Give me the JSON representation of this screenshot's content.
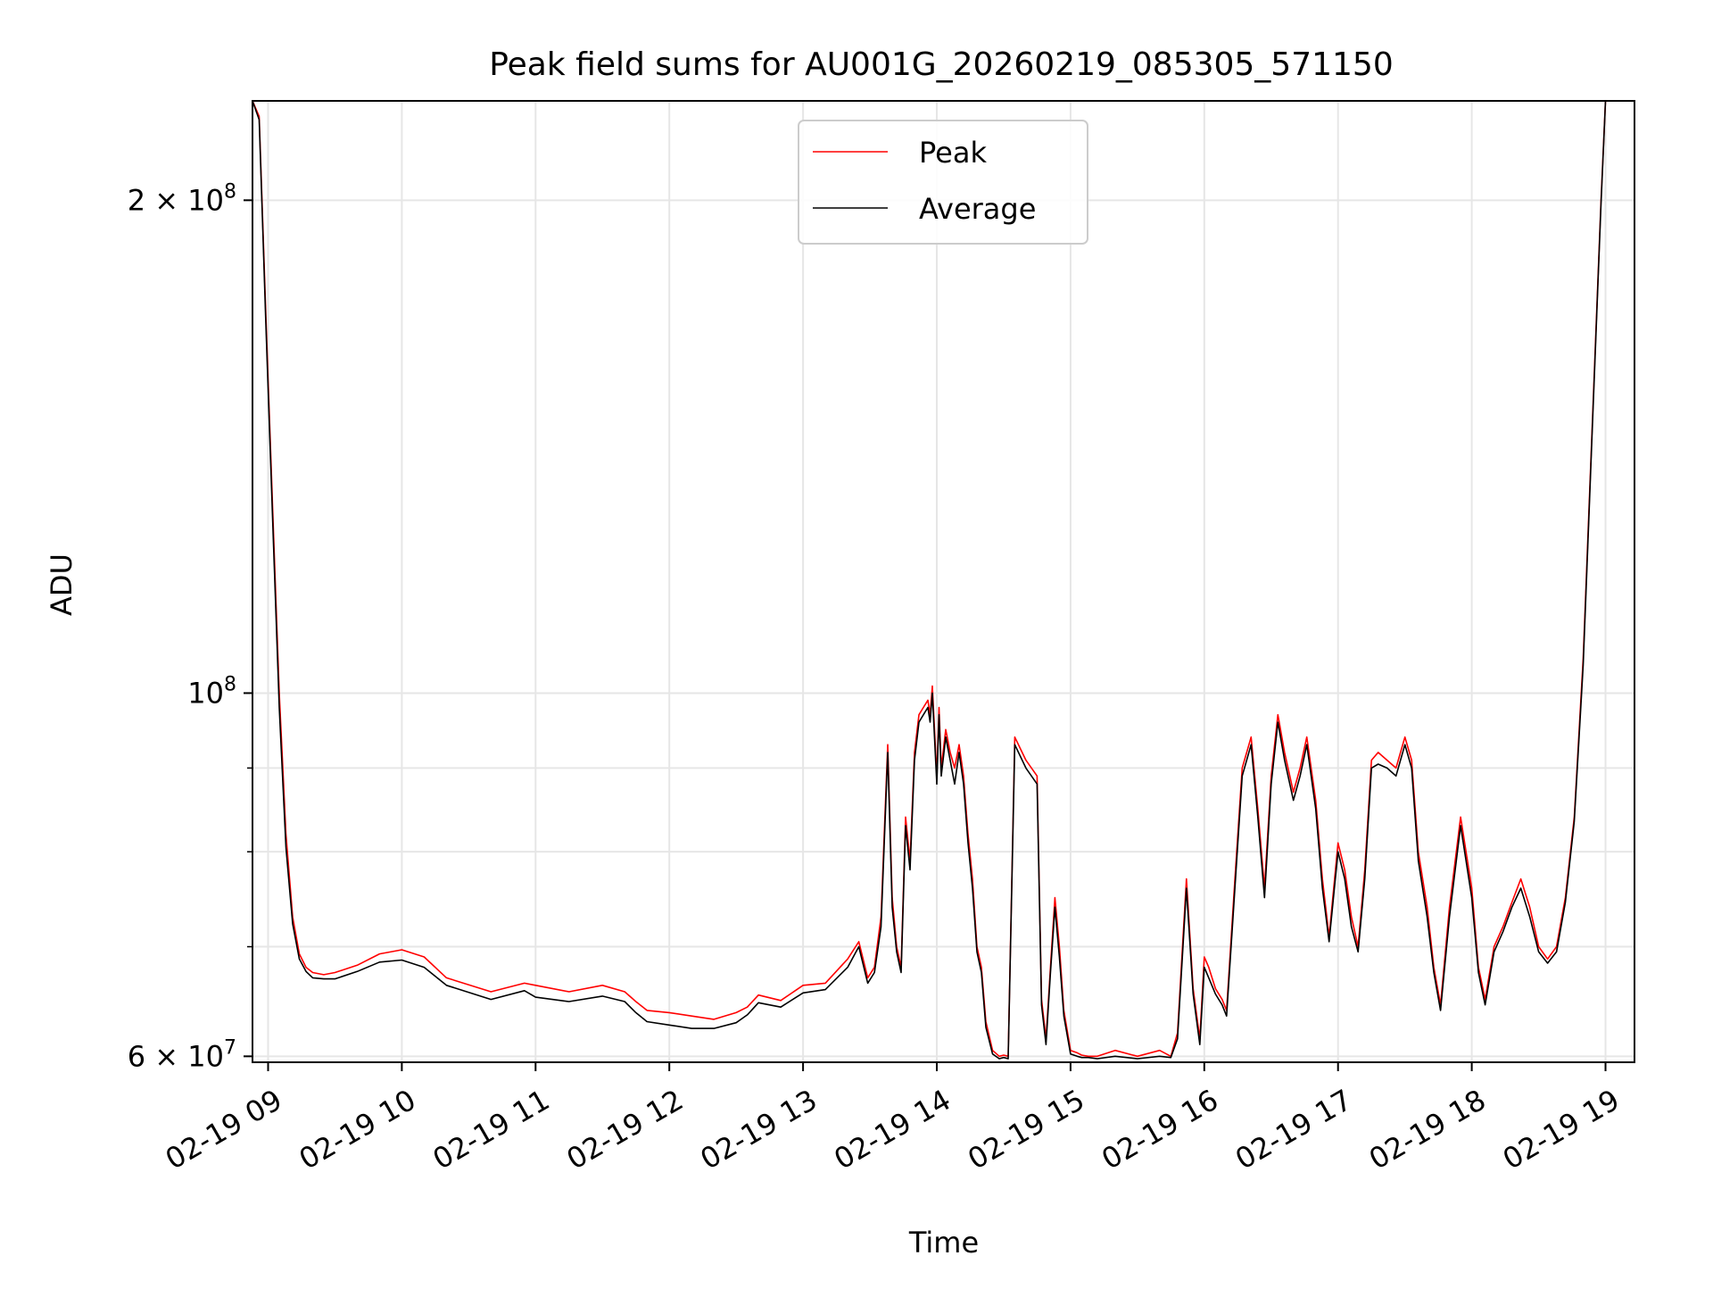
{
  "chart_data": {
    "type": "line",
    "title": "Peak field sums for AU001G_20260219_085305_571150",
    "xlabel": "Time",
    "ylabel": "ADU",
    "y_scale": "log",
    "grid": true,
    "legend_position": "top-center",
    "xlim": [
      "02-19 08:53",
      "02-19 19:13"
    ],
    "ylim": [
      59500000,
      230000000
    ],
    "x_ticks": [
      {
        "x": "02-19 09:00",
        "label": "02-19 09"
      },
      {
        "x": "02-19 10:00",
        "label": "02-19 10"
      },
      {
        "x": "02-19 11:00",
        "label": "02-19 11"
      },
      {
        "x": "02-19 12:00",
        "label": "02-19 12"
      },
      {
        "x": "02-19 13:00",
        "label": "02-19 13"
      },
      {
        "x": "02-19 14:00",
        "label": "02-19 14"
      },
      {
        "x": "02-19 15:00",
        "label": "02-19 15"
      },
      {
        "x": "02-19 16:00",
        "label": "02-19 16"
      },
      {
        "x": "02-19 17:00",
        "label": "02-19 17"
      },
      {
        "x": "02-19 18:00",
        "label": "02-19 18"
      },
      {
        "x": "02-19 19:00",
        "label": "02-19 19"
      }
    ],
    "y_major_ticks": [
      {
        "value": 60000000,
        "mantissa": "6",
        "base": "10",
        "exponent": "7"
      },
      {
        "value": 100000000,
        "mantissa": "",
        "base": "10",
        "exponent": "8"
      },
      {
        "value": 200000000,
        "mantissa": "2",
        "base": "10",
        "exponent": "8"
      }
    ],
    "y_minor_ticks": [
      70000000,
      80000000,
      90000000
    ],
    "series": [
      {
        "name": "Peak",
        "color": "#ff0000",
        "x": [
          "08:53",
          "08:56",
          "08:59",
          "09:02",
          "09:05",
          "09:08",
          "09:11",
          "09:14",
          "09:17",
          "09:20",
          "09:25",
          "09:30",
          "09:40",
          "09:50",
          "10:00",
          "10:10",
          "10:20",
          "10:40",
          "10:55",
          "11:00",
          "11:15",
          "11:30",
          "11:40",
          "11:45",
          "11:50",
          "12:00",
          "12:10",
          "12:20",
          "12:30",
          "12:35",
          "12:40",
          "12:50",
          "13:00",
          "13:10",
          "13:20",
          "13:25",
          "13:29",
          "13:32",
          "13:35",
          "13:38",
          "13:40",
          "13:42",
          "13:44",
          "13:46",
          "13:48",
          "13:50",
          "13:52",
          "13:54",
          "13:56",
          "13:57",
          "13:58",
          "14:00",
          "14:01",
          "14:02",
          "14:04",
          "14:06",
          "14:08",
          "14:10",
          "14:12",
          "14:14",
          "14:16",
          "14:18",
          "14:20",
          "14:22",
          "14:25",
          "14:28",
          "14:30",
          "14:32",
          "14:35",
          "14:40",
          "14:45",
          "14:47",
          "14:49",
          "14:51",
          "14:53",
          "14:55",
          "14:57",
          "15:00",
          "15:03",
          "15:05",
          "15:08",
          "15:12",
          "15:20",
          "15:30",
          "15:40",
          "15:45",
          "15:48",
          "15:52",
          "15:55",
          "15:58",
          "16:00",
          "16:02",
          "16:05",
          "16:08",
          "16:10",
          "16:14",
          "16:17",
          "16:21",
          "16:24",
          "16:27",
          "16:30",
          "16:33",
          "16:36",
          "16:40",
          "16:43",
          "16:46",
          "16:50",
          "16:53",
          "16:56",
          "17:00",
          "17:03",
          "17:06",
          "17:09",
          "17:12",
          "17:15",
          "17:18",
          "17:22",
          "17:26",
          "17:30",
          "17:33",
          "17:36",
          "17:40",
          "17:43",
          "17:46",
          "17:50",
          "17:55",
          "18:00",
          "18:03",
          "18:06",
          "18:10",
          "18:14",
          "18:18",
          "18:22",
          "18:26",
          "18:30",
          "18:34",
          "18:38",
          "18:42",
          "18:46",
          "18:50",
          "18:54",
          "18:58",
          "19:00"
        ],
        "y": [
          230000000,
          225000000,
          170000000,
          130000000,
          100000000,
          82000000,
          73000000,
          69300000,
          68000000,
          67500000,
          67300000,
          67500000,
          68200000,
          69300000,
          69700000,
          69000000,
          67000000,
          65700000,
          66500000,
          66300000,
          65700000,
          66300000,
          65700000,
          64800000,
          64000000,
          63800000,
          63500000,
          63200000,
          63800000,
          64300000,
          65400000,
          64900000,
          66300000,
          66500000,
          68800000,
          70500000,
          67000000,
          68000000,
          73000000,
          93000000,
          75000000,
          70000000,
          68000000,
          84000000,
          79000000,
          92000000,
          97000000,
          98000000,
          99000000,
          97000000,
          101000000,
          89000000,
          98000000,
          90000000,
          95000000,
          92000000,
          90000000,
          93000000,
          89000000,
          82000000,
          77000000,
          70000000,
          68000000,
          63000000,
          60500000,
          60000000,
          60100000,
          60000000,
          94000000,
          91000000,
          89000000,
          65000000,
          61500000,
          68000000,
          75000000,
          70000000,
          64000000,
          60500000,
          60300000,
          60100000,
          60000000,
          60000000,
          60500000,
          60000000,
          60500000,
          60000000,
          62000000,
          77000000,
          66000000,
          61500000,
          69000000,
          68000000,
          66000000,
          65000000,
          64000000,
          78000000,
          90000000,
          94000000,
          85000000,
          76000000,
          89000000,
          97000000,
          92000000,
          87000000,
          90000000,
          94000000,
          86000000,
          77000000,
          71000000,
          81000000,
          78000000,
          73000000,
          70000000,
          78000000,
          91000000,
          92000000,
          91000000,
          90000000,
          94000000,
          91000000,
          80000000,
          74000000,
          68000000,
          64500000,
          74000000,
          84000000,
          76000000,
          68000000,
          65000000,
          70000000,
          72000000,
          74500000,
          77000000,
          74000000,
          70000000,
          68800000,
          70000000,
          75000000,
          84000000,
          105000000,
          145000000,
          200000000,
          230000000
        ]
      },
      {
        "name": "Average",
        "color": "#000000",
        "x": [
          "08:53",
          "08:56",
          "08:59",
          "09:02",
          "09:05",
          "09:08",
          "09:11",
          "09:14",
          "09:17",
          "09:20",
          "09:25",
          "09:30",
          "09:40",
          "09:50",
          "10:00",
          "10:10",
          "10:20",
          "10:40",
          "10:55",
          "11:00",
          "11:15",
          "11:30",
          "11:40",
          "11:45",
          "11:50",
          "12:00",
          "12:10",
          "12:20",
          "12:30",
          "12:35",
          "12:40",
          "12:50",
          "13:00",
          "13:10",
          "13:20",
          "13:25",
          "13:29",
          "13:32",
          "13:35",
          "13:38",
          "13:40",
          "13:42",
          "13:44",
          "13:46",
          "13:48",
          "13:50",
          "13:52",
          "13:54",
          "13:56",
          "13:57",
          "13:58",
          "14:00",
          "14:01",
          "14:02",
          "14:04",
          "14:06",
          "14:08",
          "14:10",
          "14:12",
          "14:14",
          "14:16",
          "14:18",
          "14:20",
          "14:22",
          "14:25",
          "14:28",
          "14:30",
          "14:32",
          "14:35",
          "14:40",
          "14:45",
          "14:47",
          "14:49",
          "14:51",
          "14:53",
          "14:55",
          "14:57",
          "15:00",
          "15:03",
          "15:05",
          "15:08",
          "15:12",
          "15:20",
          "15:30",
          "15:40",
          "15:45",
          "15:48",
          "15:52",
          "15:55",
          "15:58",
          "16:00",
          "16:02",
          "16:05",
          "16:08",
          "16:10",
          "16:14",
          "16:17",
          "16:21",
          "16:24",
          "16:27",
          "16:30",
          "16:33",
          "16:36",
          "16:40",
          "16:43",
          "16:46",
          "16:50",
          "16:53",
          "16:56",
          "17:00",
          "17:03",
          "17:06",
          "17:09",
          "17:12",
          "17:15",
          "17:18",
          "17:22",
          "17:26",
          "17:30",
          "17:33",
          "17:36",
          "17:40",
          "17:43",
          "17:46",
          "17:50",
          "17:55",
          "18:00",
          "18:03",
          "18:06",
          "18:10",
          "18:14",
          "18:18",
          "18:22",
          "18:26",
          "18:30",
          "18:34",
          "18:38",
          "18:42",
          "18:46",
          "18:50",
          "18:54",
          "18:58",
          "19:00"
        ],
        "y": [
          230000000,
          224000000,
          168000000,
          128000000,
          98000000,
          80500000,
          72300000,
          68800000,
          67600000,
          67000000,
          66900000,
          66900000,
          67600000,
          68500000,
          68700000,
          68000000,
          66300000,
          65000000,
          65800000,
          65200000,
          64800000,
          65300000,
          64800000,
          63800000,
          63000000,
          62700000,
          62400000,
          62400000,
          62900000,
          63600000,
          64700000,
          64300000,
          65600000,
          65900000,
          68000000,
          70000000,
          66500000,
          67500000,
          72000000,
          92000000,
          74000000,
          69500000,
          67500000,
          83000000,
          78000000,
          91000000,
          96000000,
          97000000,
          98000000,
          96000000,
          100000000,
          88000000,
          97000000,
          89000000,
          94000000,
          91000000,
          88000000,
          92000000,
          88000000,
          81000000,
          76000000,
          69500000,
          67500000,
          62500000,
          60200000,
          59800000,
          59900000,
          59800000,
          93000000,
          90000000,
          88000000,
          64500000,
          61000000,
          67500000,
          74000000,
          69000000,
          63500000,
          60200000,
          60000000,
          59900000,
          59900000,
          59800000,
          60000000,
          59800000,
          60000000,
          59900000,
          61500000,
          76000000,
          65500000,
          61000000,
          68000000,
          67000000,
          65500000,
          64500000,
          63500000,
          77000000,
          89000000,
          93000000,
          84000000,
          75000000,
          88000000,
          96000000,
          91000000,
          86000000,
          89000000,
          93000000,
          85000000,
          76000000,
          70500000,
          80000000,
          77000000,
          72000000,
          69500000,
          77000000,
          90000000,
          90500000,
          90000000,
          89000000,
          93000000,
          90000000,
          79000000,
          73000000,
          67500000,
          64000000,
          73000000,
          83000000,
          75000000,
          67500000,
          64500000,
          69500000,
          71500000,
          74000000,
          76000000,
          73000000,
          69500000,
          68400000,
          69500000,
          74500000,
          83500000,
          104000000,
          144000000,
          199000000,
          230000000
        ]
      }
    ]
  }
}
